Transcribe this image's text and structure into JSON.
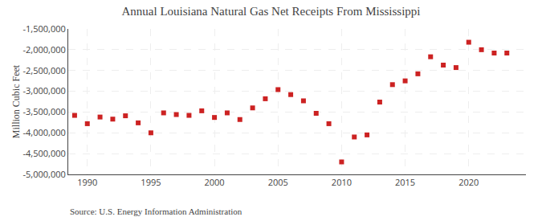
{
  "chart_data": {
    "type": "scatter",
    "title": "Annual Louisiana Natural Gas Net Receipts From Mississippi",
    "ylabel": "Million Cubic Feet",
    "annotations": [
      "Source: U.S. Energy Information Administration"
    ],
    "x": [
      1989,
      1990,
      1991,
      1992,
      1993,
      1994,
      1995,
      1996,
      1997,
      1998,
      1999,
      2000,
      2001,
      2002,
      2003,
      2004,
      2005,
      2006,
      2007,
      2008,
      2009,
      2010,
      2011,
      2012,
      2013,
      2014,
      2015,
      2016,
      2017,
      2018,
      2019,
      2020,
      2021,
      2022,
      2023
    ],
    "values": [
      -3580000,
      -3780000,
      -3620000,
      -3670000,
      -3590000,
      -3760000,
      -4000000,
      -3520000,
      -3560000,
      -3580000,
      -3470000,
      -3630000,
      -3520000,
      -3680000,
      -3400000,
      -3180000,
      -2960000,
      -3080000,
      -3230000,
      -3530000,
      -3780000,
      -4700000,
      -4100000,
      -4050000,
      -3260000,
      -2840000,
      -2750000,
      -2580000,
      -2170000,
      -2370000,
      -2430000,
      -1820000,
      -2000000,
      -2080000,
      -2080000
    ],
    "color": "#cc2222",
    "marker": "square",
    "xlim": [
      1988.5,
      2024.5
    ],
    "xticks": [
      1990,
      1995,
      2000,
      2005,
      2010,
      2015,
      2020
    ],
    "ylim": [
      -5000000,
      -1500000
    ],
    "yticks": [
      {
        "value": -5000000,
        "label": "-5,000,000"
      },
      {
        "value": -4500000,
        "label": "-4,500,000"
      },
      {
        "value": -4000000,
        "label": "-4,000,000"
      },
      {
        "value": -3500000,
        "label": "-3,500,000"
      },
      {
        "value": -3000000,
        "label": "-3,000,000"
      },
      {
        "value": -2500000,
        "label": "-2,500,000"
      },
      {
        "value": -2000000,
        "label": "-2,000,000"
      },
      {
        "value": -1500000,
        "label": "-1,500,000"
      }
    ],
    "grid": true
  }
}
